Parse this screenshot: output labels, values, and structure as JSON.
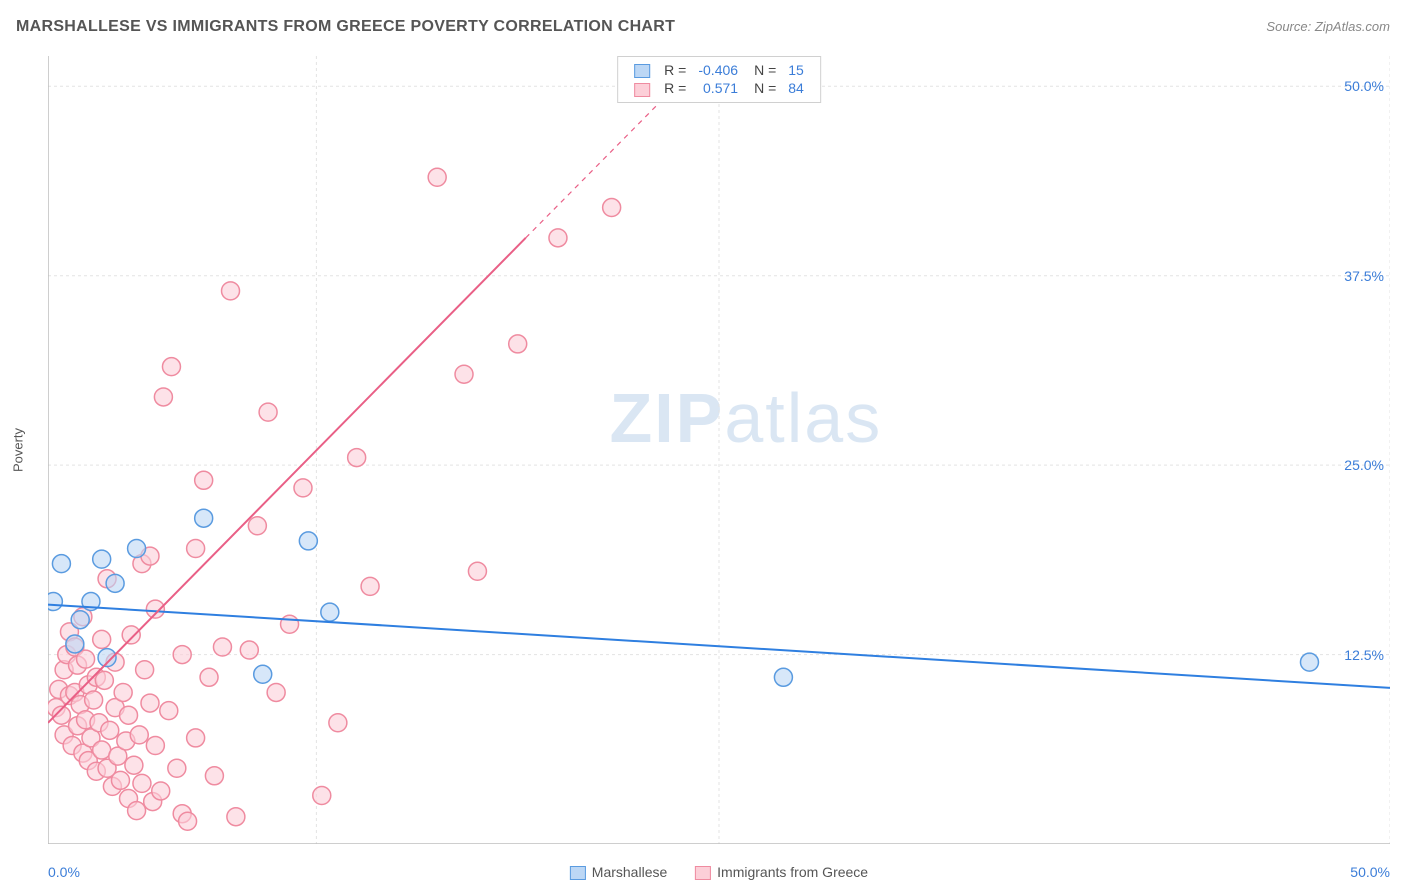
{
  "header": {
    "title": "MARSHALLESE VS IMMIGRANTS FROM GREECE POVERTY CORRELATION CHART",
    "source_label": "Source:",
    "source_name": "ZipAtlas.com"
  },
  "ylabel": "Poverty",
  "watermark": {
    "part1": "ZIP",
    "part2": "atlas"
  },
  "chart": {
    "type": "scatter",
    "background_color": "#ffffff",
    "grid_color": "#e3e3e3",
    "axis_color": "#bdbdbd",
    "xlim": [
      0,
      50
    ],
    "ylim": [
      0,
      52
    ],
    "xticks_visible": [
      {
        "v": 0,
        "label": "0.0%"
      },
      {
        "v": 50,
        "label": "50.0%"
      }
    ],
    "xticks_grid": [
      0,
      10,
      25,
      50
    ],
    "yticks": [
      {
        "v": 12.5,
        "label": "12.5%"
      },
      {
        "v": 25.0,
        "label": "25.0%"
      },
      {
        "v": 37.5,
        "label": "37.5%"
      },
      {
        "v": 50.0,
        "label": "50.0%"
      }
    ],
    "marker_radius": 9,
    "marker_stroke_width": 1.5,
    "trend_line_width": 2
  },
  "series": [
    {
      "key": "marshallese",
      "label": "Marshallese",
      "R": "-0.406",
      "N": "15",
      "fill": "#bcd7f5",
      "stroke": "#5a9be0",
      "line_color": "#2f7fe0",
      "trend": {
        "x1": 0,
        "y1": 15.8,
        "x2": 50,
        "y2": 10.3
      },
      "points": [
        [
          0.2,
          16.0
        ],
        [
          0.5,
          18.5
        ],
        [
          1.2,
          14.8
        ],
        [
          2.0,
          18.8
        ],
        [
          3.3,
          19.5
        ],
        [
          2.5,
          17.2
        ],
        [
          1.0,
          13.2
        ],
        [
          2.2,
          12.3
        ],
        [
          5.8,
          21.5
        ],
        [
          8.0,
          11.2
        ],
        [
          9.7,
          20.0
        ],
        [
          10.5,
          15.3
        ],
        [
          27.4,
          11.0
        ],
        [
          47.0,
          12.0
        ],
        [
          1.6,
          16.0
        ]
      ]
    },
    {
      "key": "greece",
      "label": "Immigrants from Greece",
      "R": "0.571",
      "N": "84",
      "fill": "#fccfd8",
      "stroke": "#ef8ba0",
      "line_color": "#e95f86",
      "trend": {
        "x1": 0,
        "y1": 8.0,
        "x2": 17.8,
        "y2": 40.0
      },
      "trend_dashed_ext": {
        "x1": 17.8,
        "y1": 40.0,
        "x2": 24.5,
        "y2": 52.0
      },
      "points": [
        [
          0.3,
          9.0
        ],
        [
          0.4,
          10.2
        ],
        [
          0.5,
          8.5
        ],
        [
          0.6,
          11.5
        ],
        [
          0.6,
          7.2
        ],
        [
          0.7,
          12.5
        ],
        [
          0.8,
          9.8
        ],
        [
          0.8,
          14.0
        ],
        [
          0.9,
          6.5
        ],
        [
          1.0,
          10.0
        ],
        [
          1.0,
          13.0
        ],
        [
          1.1,
          7.8
        ],
        [
          1.1,
          11.8
        ],
        [
          1.2,
          9.2
        ],
        [
          1.3,
          15.0
        ],
        [
          1.3,
          6.0
        ],
        [
          1.4,
          8.2
        ],
        [
          1.4,
          12.2
        ],
        [
          1.5,
          10.5
        ],
        [
          1.5,
          5.5
        ],
        [
          1.6,
          7.0
        ],
        [
          1.7,
          9.5
        ],
        [
          1.8,
          11.0
        ],
        [
          1.8,
          4.8
        ],
        [
          1.9,
          8.0
        ],
        [
          2.0,
          6.2
        ],
        [
          2.0,
          13.5
        ],
        [
          2.1,
          10.8
        ],
        [
          2.2,
          5.0
        ],
        [
          2.2,
          17.5
        ],
        [
          2.3,
          7.5
        ],
        [
          2.4,
          3.8
        ],
        [
          2.5,
          9.0
        ],
        [
          2.5,
          12.0
        ],
        [
          2.6,
          5.8
        ],
        [
          2.7,
          4.2
        ],
        [
          2.8,
          10.0
        ],
        [
          2.9,
          6.8
        ],
        [
          3.0,
          8.5
        ],
        [
          3.0,
          3.0
        ],
        [
          3.1,
          13.8
        ],
        [
          3.2,
          5.2
        ],
        [
          3.3,
          2.2
        ],
        [
          3.4,
          7.2
        ],
        [
          3.5,
          18.5
        ],
        [
          3.5,
          4.0
        ],
        [
          3.6,
          11.5
        ],
        [
          3.8,
          9.3
        ],
        [
          3.8,
          19.0
        ],
        [
          3.9,
          2.8
        ],
        [
          4.0,
          6.5
        ],
        [
          4.0,
          15.5
        ],
        [
          4.2,
          3.5
        ],
        [
          4.3,
          29.5
        ],
        [
          4.5,
          8.8
        ],
        [
          4.6,
          31.5
        ],
        [
          4.8,
          5.0
        ],
        [
          5.0,
          12.5
        ],
        [
          5.0,
          2.0
        ],
        [
          5.2,
          1.5
        ],
        [
          5.5,
          7.0
        ],
        [
          5.5,
          19.5
        ],
        [
          5.8,
          24.0
        ],
        [
          6.0,
          11.0
        ],
        [
          6.2,
          4.5
        ],
        [
          6.5,
          13.0
        ],
        [
          6.8,
          36.5
        ],
        [
          7.0,
          1.8
        ],
        [
          7.5,
          12.8
        ],
        [
          7.8,
          21.0
        ],
        [
          8.2,
          28.5
        ],
        [
          8.5,
          10.0
        ],
        [
          9.0,
          14.5
        ],
        [
          9.5,
          23.5
        ],
        [
          10.2,
          3.2
        ],
        [
          10.8,
          8.0
        ],
        [
          11.5,
          25.5
        ],
        [
          12.0,
          17.0
        ],
        [
          14.5,
          44.0
        ],
        [
          15.5,
          31.0
        ],
        [
          16.0,
          18.0
        ],
        [
          17.5,
          33.0
        ],
        [
          19.0,
          40.0
        ],
        [
          21.0,
          42.0
        ]
      ]
    }
  ],
  "legend_top": {
    "r_label": "R =",
    "n_label": "N ="
  }
}
